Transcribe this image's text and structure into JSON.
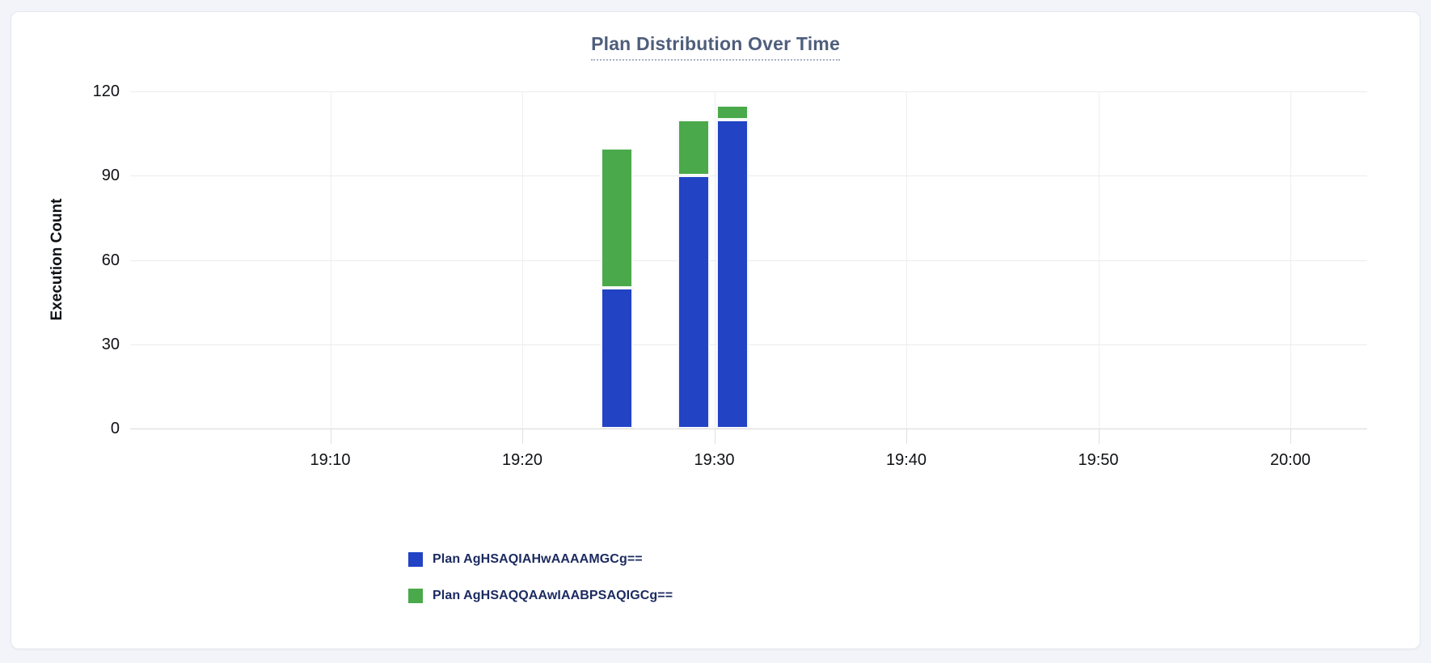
{
  "panel": {
    "background": "#f2f4f9",
    "card_background": "#ffffff",
    "card_border": "#e4e7ee"
  },
  "chart_data": {
    "type": "bar",
    "stacked": true,
    "title": "Plan Distribution Over Time",
    "xlabel": "",
    "ylabel": "Execution Count",
    "ylim": [
      0,
      120
    ],
    "y_ticks": [
      0,
      30,
      60,
      90,
      120
    ],
    "x_ticks": [
      {
        "minute": 10,
        "label": "19:10"
      },
      {
        "minute": 20,
        "label": "19:20"
      },
      {
        "minute": 30,
        "label": "19:30"
      },
      {
        "minute": 40,
        "label": "19:40"
      },
      {
        "minute": 50,
        "label": "19:50"
      },
      {
        "minute": 60,
        "label": "20:00"
      }
    ],
    "x_domain_minutes_after_1900": [
      -0.4,
      64.0
    ],
    "grid": true,
    "legend_position": "bottom-left",
    "bucket_width_minutes": 2,
    "categories": [
      "19:24",
      "19:28",
      "19:30"
    ],
    "category_start_minutes": [
      24,
      28,
      30
    ],
    "series": [
      {
        "name": "Plan AgHSAQIAHwAAAAMGCg==",
        "color": "#2143c4",
        "values": [
          50,
          90,
          110
        ]
      },
      {
        "name": "Plan AgHSAQQAAwIAABPSAQIGCg==",
        "color": "#4aa94a",
        "values": [
          50,
          20,
          5
        ]
      }
    ],
    "bar_totals": [
      100,
      110,
      115
    ]
  },
  "legend": {
    "items": [
      {
        "label": "Plan AgHSAQIAHwAAAAMGCg==",
        "color": "#2143c4"
      },
      {
        "label": "Plan AgHSAQQAAwIAABPSAQIGCg==",
        "color": "#4aa94a"
      }
    ]
  }
}
